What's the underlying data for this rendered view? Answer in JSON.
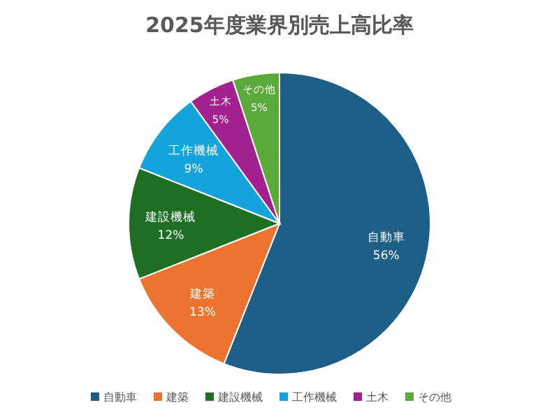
{
  "chart_data": {
    "type": "pie",
    "title": "2025年度業界別売上高比率",
    "categories": [
      "自動車",
      "建築",
      "建設機械",
      "工作機械",
      "土木",
      "その他"
    ],
    "values": [
      56,
      13,
      12,
      9,
      5,
      5
    ],
    "colors": [
      "#1d5f87",
      "#ed7330",
      "#1e6f23",
      "#14a3dc",
      "#a3218e",
      "#5aaa3a"
    ],
    "value_labels": [
      "56%",
      "13%",
      "12%",
      "9%",
      "5%",
      "5%"
    ],
    "legend": "bottom"
  }
}
